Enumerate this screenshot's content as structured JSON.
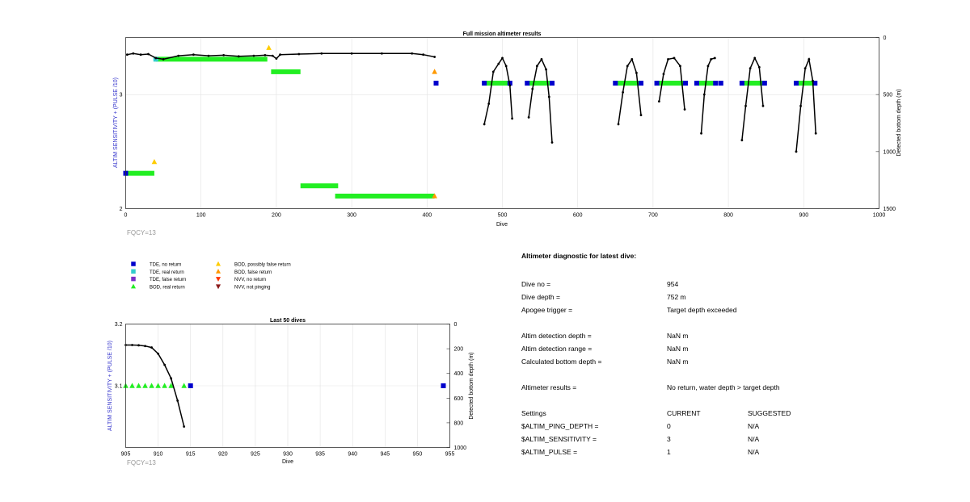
{
  "colors": {
    "tde_no_return": "#0000cc",
    "tde_real_return": "#33cccc",
    "tde_false_return": "#7a2fc8",
    "bod_real_return": "#22ee22",
    "bod_possibly_false": "#ffcc00",
    "bod_false_return": "#ff9900",
    "nvv_no_return": "#ff3300",
    "nvv_not_pinging": "#8b1a1a",
    "depth_line": "#000000",
    "left_axis_label": "#3333cc",
    "fqcy": "#999999"
  },
  "chart_data": [
    {
      "type": "scatter",
      "title": "Full mission altimeter results",
      "xlabel": "Dive",
      "ylabel": "ALTIM SENSITIVITY + (PULSE /10)",
      "ylabel_right": "Detected bottom depth (m)",
      "xlim": [
        0,
        1000
      ],
      "ylim": [
        2,
        3.5
      ],
      "ylim_right": [
        0,
        1500
      ],
      "right_inverted": true,
      "xticks": [
        "0",
        "100",
        "200",
        "300",
        "400",
        "500",
        "600",
        "700",
        "800",
        "900",
        "1000"
      ],
      "yticks": [
        "2",
        "3"
      ],
      "yticks_right": [
        "0",
        "500",
        "1000",
        "1500"
      ],
      "grid": true,
      "annotation": "FQCY=13",
      "bars": [
        {
          "x0": 0,
          "x1": 38,
          "y": 2.31,
          "kind": "bod_real_return"
        },
        {
          "x0": 40,
          "x1": 188,
          "y": 3.31,
          "kind": "bod_real_return"
        },
        {
          "x0": 193,
          "x1": 232,
          "y": 3.2,
          "kind": "bod_real_return"
        },
        {
          "x0": 232,
          "x1": 282,
          "y": 2.2,
          "kind": "bod_real_return"
        },
        {
          "x0": 278,
          "x1": 410,
          "y": 2.11,
          "kind": "bod_real_return"
        },
        {
          "x0": 478,
          "x1": 510,
          "y": 3.1,
          "kind": "bod_real_return"
        },
        {
          "x0": 535,
          "x1": 565,
          "y": 3.1,
          "kind": "bod_real_return"
        },
        {
          "x0": 653,
          "x1": 683,
          "y": 3.1,
          "kind": "bod_real_return"
        },
        {
          "x0": 706,
          "x1": 742,
          "y": 3.1,
          "kind": "bod_real_return"
        },
        {
          "x0": 760,
          "x1": 782,
          "y": 3.1,
          "kind": "bod_real_return"
        },
        {
          "x0": 820,
          "x1": 848,
          "y": 3.1,
          "kind": "bod_real_return"
        },
        {
          "x0": 890,
          "x1": 915,
          "y": 3.1,
          "kind": "bod_real_return"
        }
      ],
      "markers": [
        {
          "x": 38,
          "y": 2.41,
          "kind": "bod_possibly_false"
        },
        {
          "x": 190,
          "y": 3.41,
          "kind": "bod_possibly_false"
        },
        {
          "x": 410,
          "y": 3.2,
          "kind": "bod_false_return"
        },
        {
          "x": 410,
          "y": 2.11,
          "kind": "bod_false_return"
        },
        {
          "x": 0,
          "y": 2.31,
          "kind": "tde_no_return"
        },
        {
          "x": 412,
          "y": 3.1,
          "kind": "tde_no_return"
        },
        {
          "x": 476,
          "y": 3.1,
          "kind": "tde_no_return"
        },
        {
          "x": 510,
          "y": 3.1,
          "kind": "tde_no_return"
        },
        {
          "x": 533,
          "y": 3.1,
          "kind": "tde_no_return"
        },
        {
          "x": 566,
          "y": 3.1,
          "kind": "tde_no_return"
        },
        {
          "x": 650,
          "y": 3.1,
          "kind": "tde_no_return"
        },
        {
          "x": 684,
          "y": 3.1,
          "kind": "tde_no_return"
        },
        {
          "x": 705,
          "y": 3.1,
          "kind": "tde_no_return"
        },
        {
          "x": 743,
          "y": 3.1,
          "kind": "tde_no_return"
        },
        {
          "x": 758,
          "y": 3.1,
          "kind": "tde_no_return"
        },
        {
          "x": 783,
          "y": 3.1,
          "kind": "tde_no_return"
        },
        {
          "x": 790,
          "y": 3.1,
          "kind": "tde_no_return"
        },
        {
          "x": 818,
          "y": 3.1,
          "kind": "tde_no_return"
        },
        {
          "x": 848,
          "y": 3.1,
          "kind": "tde_no_return"
        },
        {
          "x": 890,
          "y": 3.1,
          "kind": "tde_no_return"
        },
        {
          "x": 915,
          "y": 3.1,
          "kind": "tde_no_return"
        },
        {
          "x": 40,
          "y": 3.31,
          "kind": "tde_real_return"
        }
      ],
      "depth_series": [
        [
          [
            2,
            150
          ],
          [
            10,
            140
          ],
          [
            20,
            150
          ],
          [
            30,
            145
          ],
          [
            40,
            180
          ],
          [
            50,
            190
          ],
          [
            70,
            160
          ],
          [
            90,
            150
          ],
          [
            110,
            160
          ],
          [
            130,
            155
          ],
          [
            150,
            165
          ],
          [
            170,
            160
          ],
          [
            185,
            155
          ],
          [
            195,
            160
          ],
          [
            200,
            185
          ],
          [
            205,
            150
          ],
          [
            230,
            145
          ],
          [
            260,
            140
          ],
          [
            300,
            140
          ],
          [
            340,
            140
          ],
          [
            380,
            140
          ],
          [
            395,
            150
          ],
          [
            410,
            170
          ]
        ],
        [
          [
            476,
            760
          ],
          [
            482,
            580
          ],
          [
            488,
            300
          ],
          [
            495,
            230
          ],
          [
            500,
            180
          ],
          [
            505,
            250
          ],
          [
            510,
            420
          ],
          [
            513,
            710
          ]
        ],
        [
          [
            535,
            700
          ],
          [
            540,
            450
          ],
          [
            546,
            250
          ],
          [
            552,
            190
          ],
          [
            558,
            280
          ],
          [
            562,
            520
          ],
          [
            566,
            920
          ]
        ],
        [
          [
            654,
            760
          ],
          [
            660,
            480
          ],
          [
            666,
            250
          ],
          [
            672,
            190
          ],
          [
            678,
            310
          ],
          [
            684,
            680
          ]
        ],
        [
          [
            708,
            560
          ],
          [
            714,
            320
          ],
          [
            720,
            190
          ],
          [
            728,
            180
          ],
          [
            736,
            250
          ],
          [
            742,
            630
          ]
        ],
        [
          [
            764,
            840
          ],
          [
            768,
            500
          ],
          [
            773,
            250
          ],
          [
            777,
            190
          ],
          [
            782,
            180
          ]
        ],
        [
          [
            818,
            900
          ],
          [
            823,
            600
          ],
          [
            829,
            270
          ],
          [
            835,
            180
          ],
          [
            841,
            260
          ],
          [
            846,
            600
          ]
        ],
        [
          [
            890,
            1000
          ],
          [
            896,
            600
          ],
          [
            902,
            270
          ],
          [
            907,
            190
          ],
          [
            912,
            380
          ],
          [
            916,
            840
          ]
        ]
      ]
    },
    {
      "type": "scatter",
      "title": "Last 50 dives",
      "xlabel": "Dive",
      "ylabel": "ALTIM SENSITIVITY + (PULSE /10)",
      "ylabel_right": "Detected bottom depth (m)",
      "xlim": [
        905,
        955
      ],
      "ylim": [
        3.0,
        3.2
      ],
      "ylim_right": [
        0,
        1000
      ],
      "right_inverted": true,
      "xticks": [
        "905",
        "910",
        "915",
        "920",
        "925",
        "930",
        "935",
        "940",
        "945",
        "950",
        "955"
      ],
      "yticks": [
        "3.1",
        "3.2"
      ],
      "yticks_right": [
        "0",
        "200",
        "400",
        "600",
        "800",
        "1000"
      ],
      "grid": true,
      "annotation": "FQCY=13",
      "markers": [
        {
          "x": 905,
          "y": 3.1,
          "kind": "bod_real_return"
        },
        {
          "x": 906,
          "y": 3.1,
          "kind": "bod_real_return"
        },
        {
          "x": 907,
          "y": 3.1,
          "kind": "bod_real_return"
        },
        {
          "x": 908,
          "y": 3.1,
          "kind": "bod_real_return"
        },
        {
          "x": 909,
          "y": 3.1,
          "kind": "bod_real_return"
        },
        {
          "x": 910,
          "y": 3.1,
          "kind": "bod_real_return"
        },
        {
          "x": 911,
          "y": 3.1,
          "kind": "bod_real_return"
        },
        {
          "x": 912,
          "y": 3.1,
          "kind": "bod_real_return"
        },
        {
          "x": 914,
          "y": 3.1,
          "kind": "bod_real_return"
        },
        {
          "x": 915,
          "y": 3.1,
          "kind": "tde_no_return"
        },
        {
          "x": 954,
          "y": 3.1,
          "kind": "tde_no_return"
        }
      ],
      "depth_series": [
        [
          [
            905,
            170
          ],
          [
            906,
            170
          ],
          [
            907,
            172
          ],
          [
            908,
            178
          ],
          [
            909,
            190
          ],
          [
            910,
            240
          ],
          [
            911,
            330
          ],
          [
            912,
            440
          ],
          [
            913,
            620
          ],
          [
            914,
            830
          ]
        ]
      ]
    }
  ],
  "legend": {
    "items": [
      {
        "label": "TDE, no return",
        "kind": "tde_no_return",
        "shape": "square"
      },
      {
        "label": "TDE, real return",
        "kind": "tde_real_return",
        "shape": "square"
      },
      {
        "label": "TDE, false return",
        "kind": "tde_false_return",
        "shape": "square"
      },
      {
        "label": "BOD, real return",
        "kind": "bod_real_return",
        "shape": "up"
      },
      {
        "label": "BOD, possibly false return",
        "kind": "bod_possibly_false",
        "shape": "up"
      },
      {
        "label": "BOD, false return",
        "kind": "bod_false_return",
        "shape": "up"
      },
      {
        "label": "NVV, no return",
        "kind": "nvv_no_return",
        "shape": "down"
      },
      {
        "label": "NVV, not pinging",
        "kind": "nvv_not_pinging",
        "shape": "down"
      }
    ]
  },
  "diagnostic": {
    "title": "Altimeter diagnostic for latest dive:",
    "rows": [
      {
        "label": "Dive no =",
        "value": "954"
      },
      {
        "label": "Dive depth =",
        "value": "752 m"
      },
      {
        "label": "Apogee trigger =",
        "value": "Target depth exceeded"
      },
      {
        "label": "Altim detection depth =",
        "value": "NaN m"
      },
      {
        "label": "Altim detection range =",
        "value": "NaN m"
      },
      {
        "label": "Calculated bottom depth =",
        "value": "NaN m"
      },
      {
        "label": "Altimeter results =",
        "value": "No return, water depth > target depth"
      }
    ],
    "settings": {
      "header": {
        "label": "Settings",
        "current": "CURRENT",
        "suggested": "SUGGESTED"
      },
      "rows": [
        {
          "label": "$ALTIM_PING_DEPTH =",
          "current": "0",
          "suggested": "N/A"
        },
        {
          "label": "$ALTIM_SENSITIVITY =",
          "current": "3",
          "suggested": "N/A"
        },
        {
          "label": "$ALTIM_PULSE =",
          "current": "1",
          "suggested": "N/A"
        }
      ]
    }
  }
}
